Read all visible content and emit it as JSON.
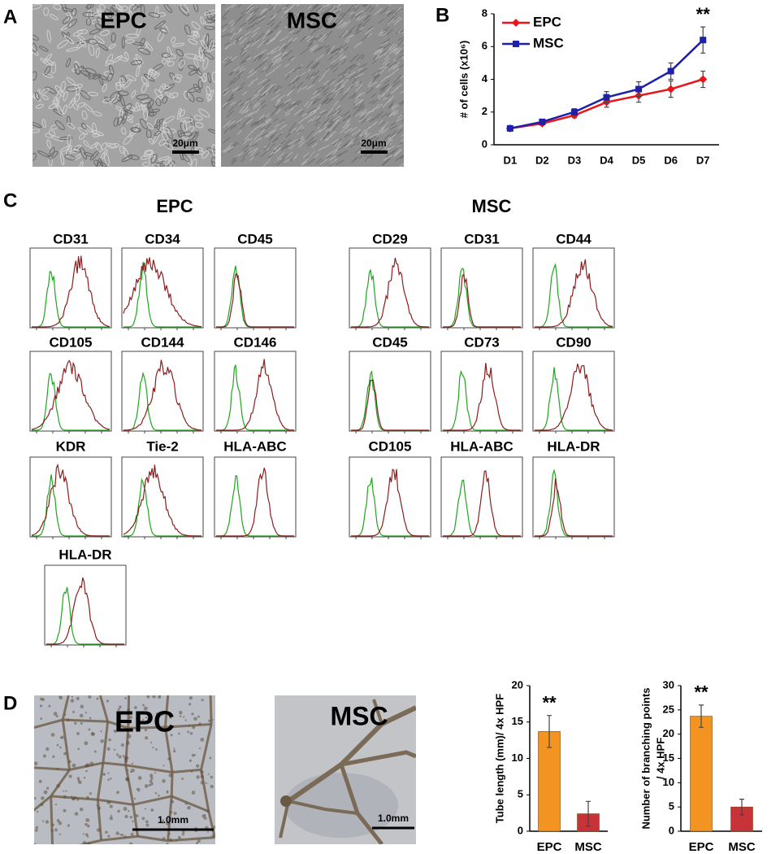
{
  "panels": {
    "a": {
      "letter": "A",
      "images": [
        {
          "label": "EPC",
          "scale": "20μm"
        },
        {
          "label": "MSC",
          "scale": "20μm"
        }
      ]
    },
    "b": {
      "letter": "B"
    },
    "c": {
      "letter": "C",
      "groups": [
        {
          "title": "EPC",
          "markers": [
            "CD31",
            "CD34",
            "CD45",
            "CD105",
            "CD144",
            "CD146",
            "KDR",
            "Tie-2",
            "HLA-ABC",
            "HLA-DR"
          ]
        },
        {
          "title": "MSC",
          "markers": [
            "CD29",
            "CD31",
            "CD44",
            "CD45",
            "CD73",
            "CD90",
            "CD105",
            "HLA-ABC",
            "HLA-DR"
          ]
        }
      ]
    },
    "d": {
      "letter": "D",
      "images": [
        {
          "label": "EPC",
          "scale": "1.0mm"
        },
        {
          "label": "MSC",
          "scale": "1.0mm"
        }
      ]
    }
  },
  "chart_data": [
    {
      "type": "line",
      "y_label": [
        "# of cells (x10⁶)"
      ],
      "annotation": "**",
      "categories": [
        "D1",
        "D2",
        "D3",
        "D4",
        "D5",
        "D6",
        "D7"
      ],
      "series": [
        {
          "name": "EPC",
          "color": "#e8161c",
          "marker": "diamond",
          "values": [
            1.0,
            1.3,
            1.8,
            2.6,
            3.0,
            3.4,
            4.0
          ],
          "errors": [
            0.1,
            0.1,
            0.15,
            0.3,
            0.4,
            0.5,
            0.5
          ]
        },
        {
          "name": "MSC",
          "color": "#1f1fa8",
          "marker": "square",
          "values": [
            1.0,
            1.4,
            2.0,
            2.9,
            3.4,
            4.5,
            6.4
          ],
          "errors": [
            0.1,
            0.1,
            0.2,
            0.35,
            0.45,
            0.5,
            0.8
          ]
        }
      ],
      "ylim": [
        0,
        8
      ],
      "yticks": [
        0,
        2,
        4,
        6,
        8
      ]
    },
    {
      "type": "bar",
      "y_label": [
        "Tube length (mm)/ 4x HPF"
      ],
      "annotation": "**",
      "categories": [
        "EPC",
        "MSC"
      ],
      "values": [
        13.7,
        2.4
      ],
      "errors": [
        2.2,
        1.7
      ],
      "colors": [
        "#f39422",
        "#c8333a"
      ],
      "ylim": [
        0,
        20
      ],
      "yticks": [
        0,
        5,
        10,
        15,
        20
      ]
    },
    {
      "type": "bar",
      "y_label": [
        "Number of branching points",
        "/ 4x HPF"
      ],
      "annotation": "**",
      "categories": [
        "EPC",
        "MSC"
      ],
      "values": [
        23.7,
        5.0
      ],
      "errors": [
        2.3,
        1.6
      ],
      "colors": [
        "#f39422",
        "#c8333a"
      ],
      "ylim": [
        0,
        30
      ],
      "yticks": [
        0,
        5,
        10,
        15,
        20,
        25,
        30
      ]
    }
  ]
}
